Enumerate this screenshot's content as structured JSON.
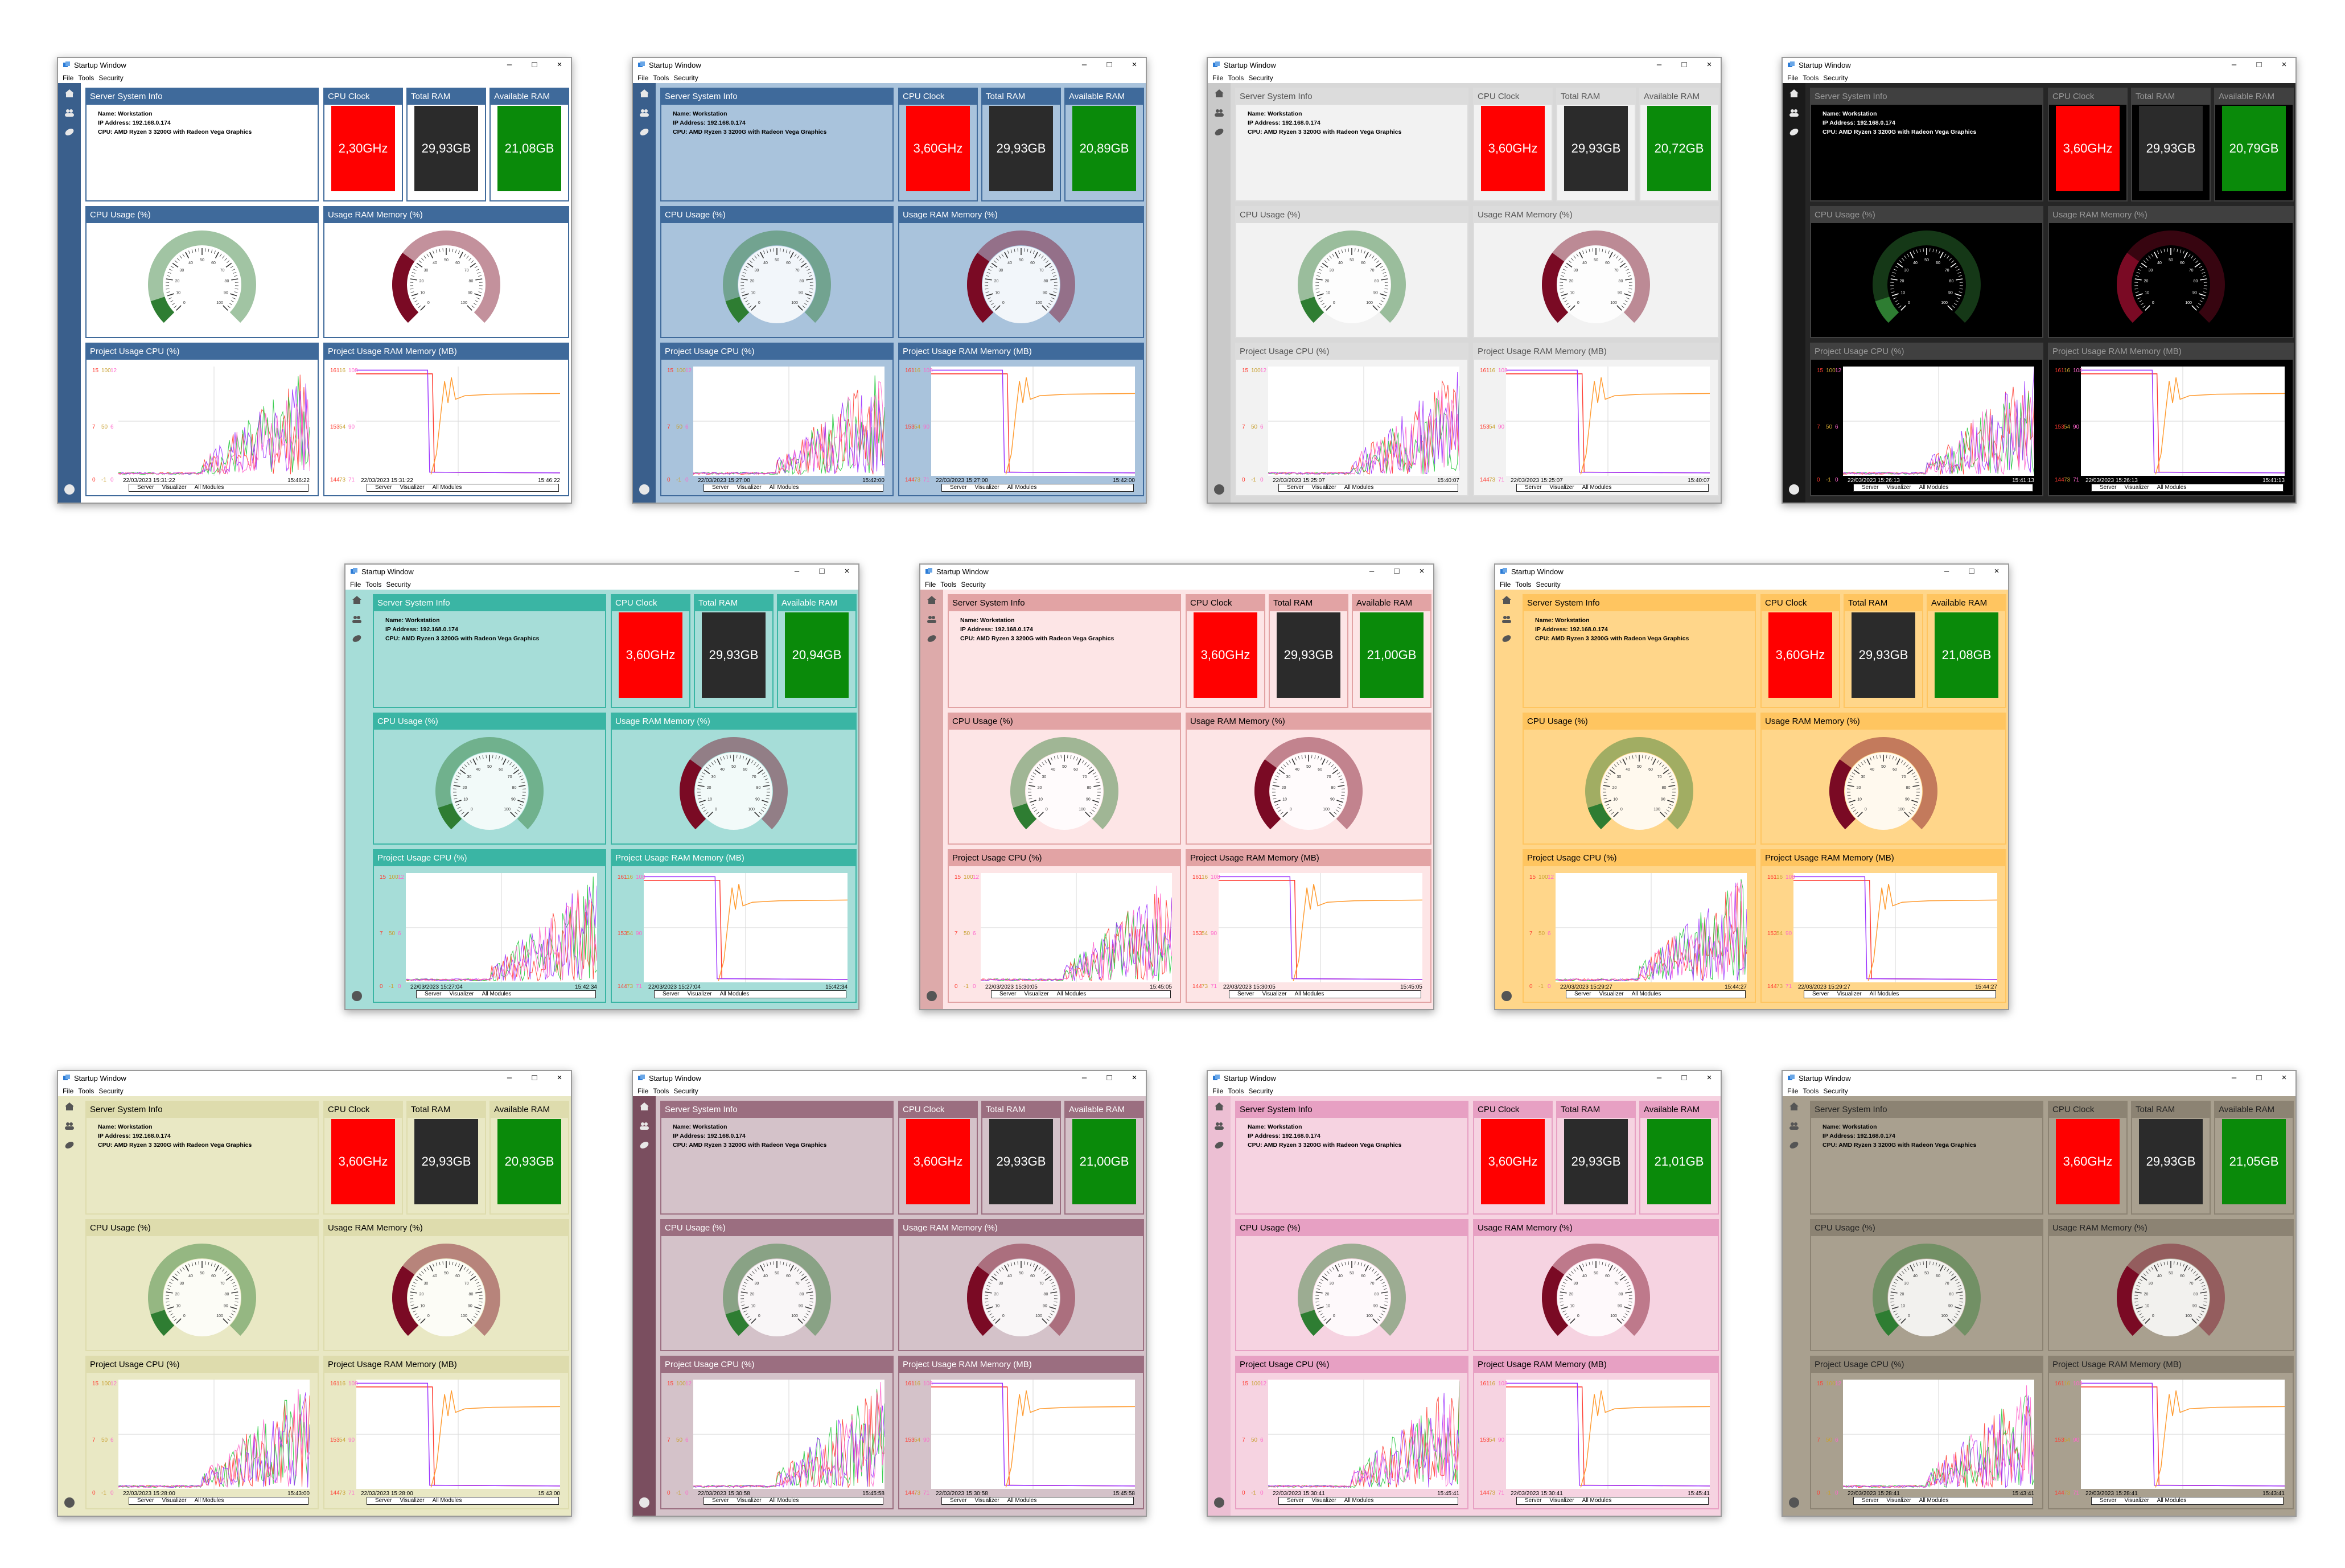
{
  "window": {
    "title": "Startup Window",
    "menu": [
      "File",
      "Tools",
      "Security"
    ],
    "panels": {
      "info_header": "Server System Info",
      "cpu_clock_header": "CPU Clock",
      "total_ram_header": "Total RAM",
      "available_ram_header": "Available RAM",
      "cpu_usage_header": "CPU Usage (%)",
      "ram_usage_header": "Usage RAM Memory (%)",
      "project_cpu_header": "Project  Usage CPU (%)",
      "project_ram_header": "Project Usage RAM Memory (MB)"
    },
    "info": {
      "name": "Name: Workstation",
      "ip": "IP Address: 192.168.0.174",
      "cpu": "CPU: AMD Ryzen 3 3200G with Radeon Vega Graphics"
    },
    "legend": [
      "Server",
      "Visualizer",
      "All Modules"
    ],
    "cpu_axis": {
      "server": [
        "15",
        "7",
        "0"
      ],
      "visualizer": [
        "100",
        "50",
        "-1"
      ],
      "all": [
        "12",
        "6",
        "0"
      ]
    },
    "ram_axis": {
      "server": [
        "161",
        "153",
        "144"
      ],
      "visualizer": [
        "16",
        "54",
        "73"
      ],
      "all": [
        "108",
        "90",
        "71"
      ]
    }
  },
  "themes": [
    {
      "theme": "blue-white",
      "bg": "#ffffff",
      "side": "#3a5f8c",
      "ph": "#3f6a9b",
      "ph_text": "#ffffff",
      "pb": "#ffffff",
      "text": "#000000",
      "cpu_clock": "2,30GHz",
      "total_ram": "29,93GB",
      "avail_ram": "21,08GB",
      "start": "22/03/2023 15:31:22",
      "end": "15:46:22"
    },
    {
      "theme": "steel-blue",
      "bg": "#a9c3dc",
      "side": "#3a5f8c",
      "ph": "#3f6a9b",
      "ph_text": "#ffffff",
      "pb": "#a9c3dc",
      "text": "#000000",
      "cpu_clock": "3,60GHz",
      "total_ram": "29,93GB",
      "avail_ram": "20,89GB",
      "start": "22/03/2023 15:27:00",
      "end": "15:42:00"
    },
    {
      "theme": "light-gray",
      "bg": "#d8d8d8",
      "side": "#c9c9c9",
      "ph": "#dcdcdc",
      "ph_text": "#555555",
      "pb": "#f2f2f2",
      "text": "#000000",
      "cpu_clock": "3,60GHz",
      "total_ram": "29,93GB",
      "avail_ram": "20,72GB",
      "start": "22/03/2023 15:25:07",
      "end": "15:40:07"
    },
    {
      "theme": "dark",
      "bg": "#262626",
      "side": "#1a1a1a",
      "ph": "#404040",
      "ph_text": "#9a9a9a",
      "pb": "#000000",
      "text": "#ffffff",
      "cpu_clock": "3,60GHz",
      "total_ram": "29,93GB",
      "avail_ram": "20,79GB",
      "start": "22/03/2023 15:26:13",
      "end": "15:41:13"
    },
    {
      "theme": "teal",
      "bg": "#a6ddd8",
      "side": "#a6ddd8",
      "ph": "#3ab5a4",
      "ph_text": "#ffffff",
      "pb": "#a6ddd8",
      "text": "#000000",
      "cpu_clock": "3,60GHz",
      "total_ram": "29,93GB",
      "avail_ram": "20,94GB",
      "start": "22/03/2023 15:27:04",
      "end": "15:42:34"
    },
    {
      "theme": "rose",
      "bg": "#fde5e6",
      "side": "#ddaaaa",
      "ph": "#e2a3a4",
      "ph_text": "#000000",
      "pb": "#fde5e6",
      "text": "#000000",
      "cpu_clock": "3,60GHz",
      "total_ram": "29,93GB",
      "avail_ram": "21,00GB",
      "start": "22/03/2023 15:30:05",
      "end": "15:45:05"
    },
    {
      "theme": "amber",
      "bg": "#ffd68a",
      "side": "#ffd68a",
      "ph": "#ffc560",
      "ph_text": "#000000",
      "pb": "#ffd68a",
      "text": "#000000",
      "cpu_clock": "3,60GHz",
      "total_ram": "29,93GB",
      "avail_ram": "21,08GB",
      "start": "22/03/2023 15:29:27",
      "end": "15:44:27"
    },
    {
      "theme": "olive",
      "bg": "#e9e8c4",
      "side": "#e9e8c4",
      "ph": "#dedcad",
      "ph_text": "#000000",
      "pb": "#e9e8c4",
      "text": "#000000",
      "cpu_clock": "3,60GHz",
      "total_ram": "29,93GB",
      "avail_ram": "20,93GB",
      "start": "22/03/2023 15:28:00",
      "end": "15:43:00"
    },
    {
      "theme": "mauve",
      "bg": "#d4c2c9",
      "side": "#7a4e5f",
      "ph": "#9b6e80",
      "ph_text": "#ffffff",
      "pb": "#d4c2c9",
      "text": "#000000",
      "cpu_clock": "3,60GHz",
      "total_ram": "29,93GB",
      "avail_ram": "21,00GB",
      "start": "22/03/2023 15:30:58",
      "end": "15:45:58"
    },
    {
      "theme": "pink",
      "bg": "#f6d3e1",
      "side": "#ecbfd3",
      "ph": "#e7a0c3",
      "ph_text": "#000000",
      "pb": "#f6d3e1",
      "text": "#000000",
      "cpu_clock": "3,60GHz",
      "total_ram": "29,93GB",
      "avail_ram": "21,01GB",
      "start": "22/03/2023 15:30:41",
      "end": "15:45:41"
    },
    {
      "theme": "taupe",
      "bg": "#a9a08f",
      "side": "#a9a08f",
      "ph": "#8c8373",
      "ph_text": "#222222",
      "pb": "#a9a08f",
      "text": "#000000",
      "cpu_clock": "3,60GHz",
      "total_ram": "29,93GB",
      "avail_ram": "21,05GB",
      "start": "22/03/2023 15:28:41",
      "end": "15:43:41"
    }
  ]
}
